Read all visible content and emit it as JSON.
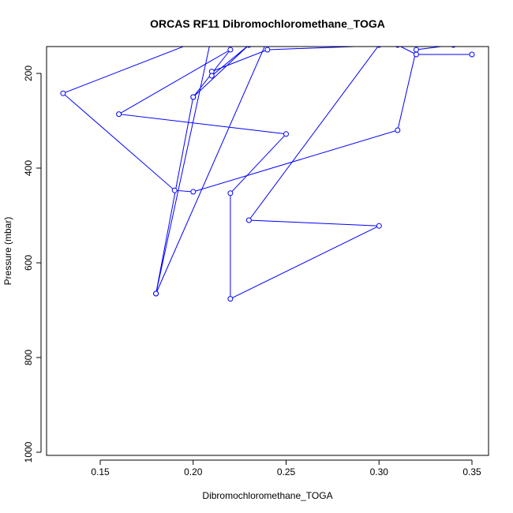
{
  "chart_data": {
    "type": "line",
    "title": "ORCAS RF11 Dibromochloromethane_TOGA",
    "xlabel": "Dibromochloromethane_TOGA",
    "ylabel": "Pressure (mbar)",
    "xlim": [
      0.11,
      0.36
    ],
    "ylim": [
      1000,
      150
    ],
    "y_reversed": true,
    "x_ticks": [
      0.15,
      0.2,
      0.25,
      0.3,
      0.35
    ],
    "x_tick_labels": [
      "0.15",
      "0.20",
      "0.25",
      "0.30",
      "0.35"
    ],
    "y_ticks": [
      200,
      400,
      600,
      800,
      1000
    ],
    "y_tick_labels": [
      "200",
      "400",
      "600",
      "800",
      "1000"
    ],
    "grid": false,
    "line_color": "#0000ff",
    "marker": "open-circle",
    "series": [
      {
        "x": [
          0.35,
          0.32,
          0.31,
          0.24,
          0.21,
          0.21,
          0.23,
          0.2,
          0.18,
          0.21,
          0.13,
          0.19,
          0.2,
          0.31,
          0.32,
          0.34,
          0.31,
          0.3,
          0.23,
          0.3,
          0.22,
          0.22,
          0.25,
          0.16,
          0.22,
          0.2,
          0.18,
          0.25
        ],
        "y": [
          160,
          160,
          140,
          150,
          196,
          205,
          140,
          250,
          665,
          120,
          242,
          447,
          450,
          320,
          150,
          140,
          135,
          140,
          510,
          522,
          676,
          453,
          328,
          286,
          150,
          250,
          665,
          40
        ]
      }
    ]
  }
}
